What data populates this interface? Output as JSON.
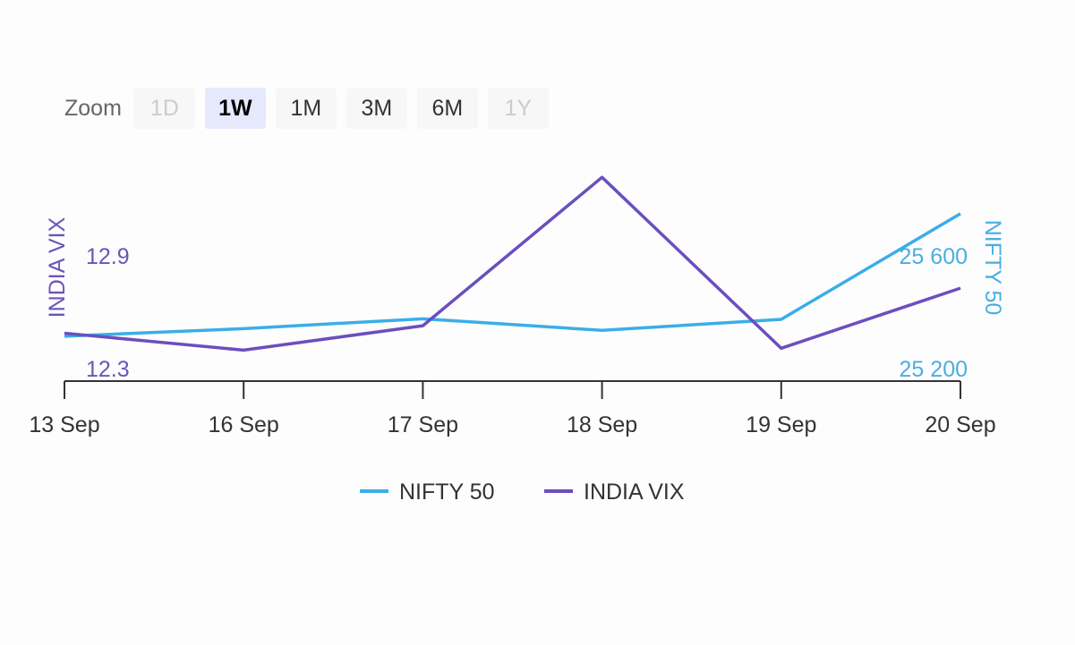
{
  "range_selector": {
    "label": "Zoom",
    "buttons": [
      {
        "label": "1D",
        "state": "disabled"
      },
      {
        "label": "1W",
        "state": "active"
      },
      {
        "label": "1M",
        "state": "normal"
      },
      {
        "label": "3M",
        "state": "normal"
      },
      {
        "label": "6M",
        "state": "normal"
      },
      {
        "label": "1Y",
        "state": "disabled"
      }
    ]
  },
  "chart_data": {
    "type": "line",
    "categories": [
      "13 Sep",
      "16 Sep",
      "17 Sep",
      "18 Sep",
      "19 Sep",
      "20 Sep"
    ],
    "series": [
      {
        "name": "NIFTY 50",
        "axis": "right",
        "color": "#3aaee8",
        "values": [
          25356,
          25383,
          25418,
          25377,
          25416,
          25791
        ]
      },
      {
        "name": "INDIA VIX",
        "axis": "left",
        "color": "#6a4fbf",
        "values": [
          12.55,
          12.46,
          12.59,
          13.38,
          12.47,
          12.79
        ]
      }
    ],
    "y_left": {
      "title": "INDIA VIX",
      "ticks": [
        "12.3",
        "12.9"
      ],
      "tick_values": [
        12.3,
        12.9
      ],
      "ylim": [
        12.3,
        13.5
      ],
      "color": "#6a55b8"
    },
    "y_right": {
      "title": "NIFTY 50",
      "ticks": [
        "25 200",
        "25 600"
      ],
      "tick_values": [
        25200,
        25600
      ],
      "ylim": [
        25200,
        26000
      ],
      "color": "#4aaee0"
    },
    "grid": false,
    "legend": "bottom-center"
  }
}
